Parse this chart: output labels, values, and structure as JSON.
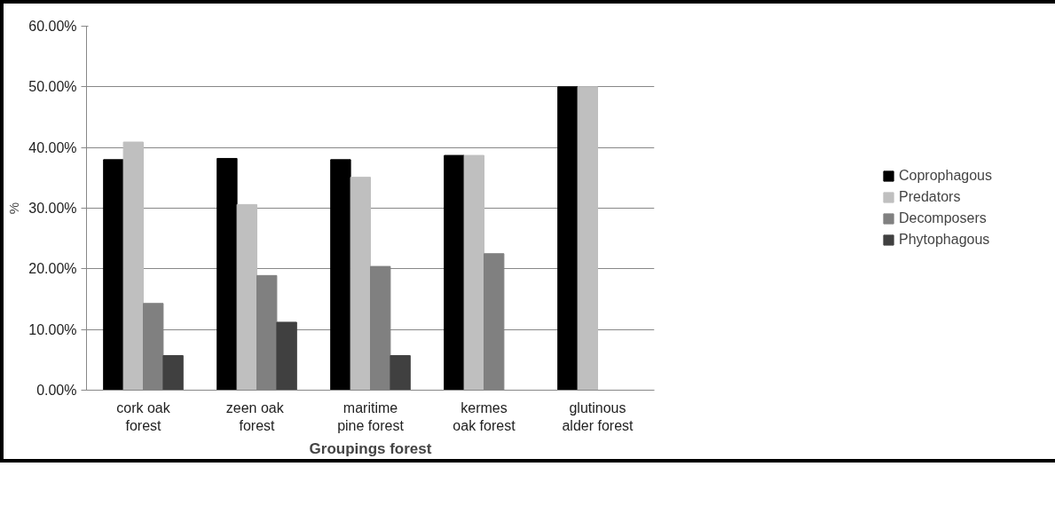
{
  "chart_data": {
    "type": "bar",
    "xlabel": "Groupings forest",
    "ylabel": "%",
    "categories": [
      "cork oak\nforest",
      "zeen  oak\nforest",
      "maritime\npine forest",
      "kermes\noak forest",
      "glutinous\nalder forest"
    ],
    "series": [
      {
        "name": "Coprophagous",
        "color": "#000000",
        "values": [
          38.0,
          38.2,
          38.0,
          38.7,
          50.0
        ]
      },
      {
        "name": "Predators",
        "color": "#bfbfbf",
        "values": [
          40.9,
          30.6,
          35.1,
          38.7,
          50.0
        ]
      },
      {
        "name": "Decomposers",
        "color": "#808080",
        "values": [
          14.3,
          18.9,
          20.4,
          22.5,
          null
        ]
      },
      {
        "name": "Phytophagous",
        "color": "#404040",
        "values": [
          5.7,
          11.2,
          5.7,
          null,
          null
        ]
      }
    ],
    "ylim": [
      0,
      60
    ],
    "yticks": [
      {
        "value": 0,
        "label": "0.00%"
      },
      {
        "value": 10,
        "label": "10.00%"
      },
      {
        "value": 20,
        "label": "20.00%"
      },
      {
        "value": 30,
        "label": "30.00%"
      },
      {
        "value": 40,
        "label": "40.00%"
      },
      {
        "value": 50,
        "label": "50.00%"
      },
      {
        "value": 60,
        "label": "60.00%"
      }
    ],
    "grid": "y",
    "legend": "right"
  }
}
